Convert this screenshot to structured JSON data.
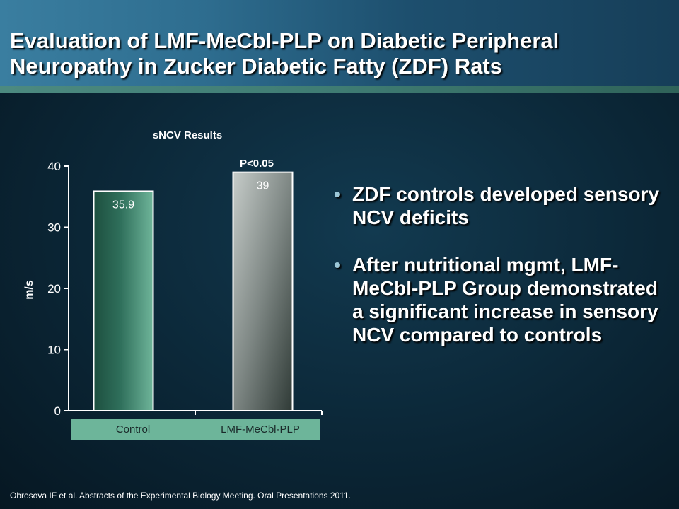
{
  "slide": {
    "title": "Evaluation of LMF-MeCbl-PLP on Diabetic Peripheral Neuropathy in Zucker Diabetic Fatty (ZDF) Rats",
    "bullets": [
      "ZDF controls developed sensory NCV deficits",
      "After nutritional mgmt, LMF-MeCbl-PLP Group demonstrated a significant increase in sensory NCV compared to controls"
    ],
    "footnote": "Obrosova IF et al. Abstracts of the Experimental Biology Meeting. Oral Presentations  2011."
  },
  "chart_data": {
    "type": "bar",
    "title": "sNCV Results",
    "categories": [
      "Control",
      "LMF-MeCbl-PLP"
    ],
    "values": [
      35.9,
      39
    ],
    "value_labels": [
      "35.9",
      "39"
    ],
    "ylabel": "m/s",
    "ylim": [
      0,
      40
    ],
    "yticks": [
      0,
      10,
      20,
      30,
      40
    ],
    "annotation": "P<0.05",
    "colors": {
      "control": "#3f8a72",
      "treatment": "#8e9894",
      "label_band": "#6db59a"
    },
    "grid": false
  }
}
